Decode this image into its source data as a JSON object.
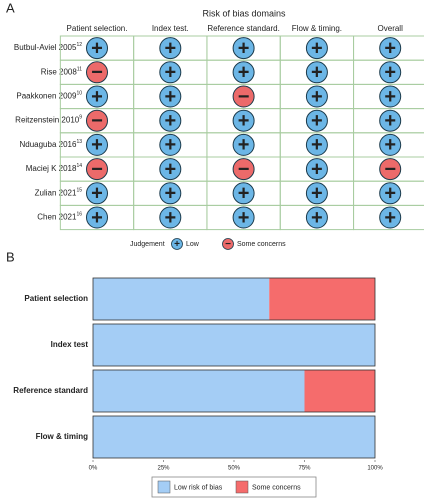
{
  "panel_a": {
    "label": "A",
    "title": "Risk of bias domains",
    "domains": [
      "Patient selection.",
      "Index test.",
      "Reference standard.",
      "Flow & timing.",
      "Overall"
    ],
    "studies": [
      {
        "name": "Butbul-Aviel 2005",
        "ref": "12",
        "judgements": [
          "+",
          "+",
          "+",
          "+",
          "+"
        ]
      },
      {
        "name": "Rise 2008",
        "ref": "11",
        "judgements": [
          "−",
          "+",
          "+",
          "+",
          "+"
        ]
      },
      {
        "name": "Paakkonen 2009",
        "ref": "10",
        "judgements": [
          "+",
          "+",
          "−",
          "+",
          "+"
        ]
      },
      {
        "name": "Reitzenstein 2010",
        "ref": "9",
        "judgements": [
          "−",
          "+",
          "+",
          "+",
          "+"
        ]
      },
      {
        "name": "Nduaguba 2016",
        "ref": "13",
        "judgements": [
          "+",
          "+",
          "+",
          "+",
          "+"
        ]
      },
      {
        "name": "Maciej K 2018",
        "ref": "14",
        "judgements": [
          "−",
          "+",
          "−",
          "+",
          "−"
        ]
      },
      {
        "name": "Zulian 2021",
        "ref": "15",
        "judgements": [
          "+",
          "+",
          "+",
          "+",
          "+"
        ]
      },
      {
        "name": "Chen 2021",
        "ref": "16",
        "judgements": [
          "+",
          "+",
          "+",
          "+",
          "+"
        ]
      }
    ],
    "legend_title": "Judgement",
    "legend": [
      {
        "symbol": "+",
        "label": "Low",
        "color": "#6cb6e6"
      },
      {
        "symbol": "−",
        "label": "Some concerns",
        "color": "#ec6a6a"
      }
    ]
  },
  "chart_data": {
    "type": "stacked_barh",
    "label": "B",
    "categories": [
      "Patient selection",
      "Index test",
      "Reference standard",
      "Flow & timing"
    ],
    "series": [
      {
        "name": "Low risk of bias",
        "color": "#a4cdf5",
        "values": [
          62.5,
          100,
          75,
          100
        ]
      },
      {
        "name": "Some concerns",
        "color": "#f56c6c",
        "values": [
          37.5,
          0,
          25,
          0
        ]
      }
    ],
    "xlim": [
      0,
      100
    ],
    "xticks": [
      {
        "value": 0,
        "label": "0%"
      },
      {
        "value": 25,
        "label": "25%"
      },
      {
        "value": 50,
        "label": "50%"
      },
      {
        "value": 75,
        "label": "75%"
      },
      {
        "value": 100,
        "label": "100%"
      }
    ],
    "legend": "bottom"
  }
}
